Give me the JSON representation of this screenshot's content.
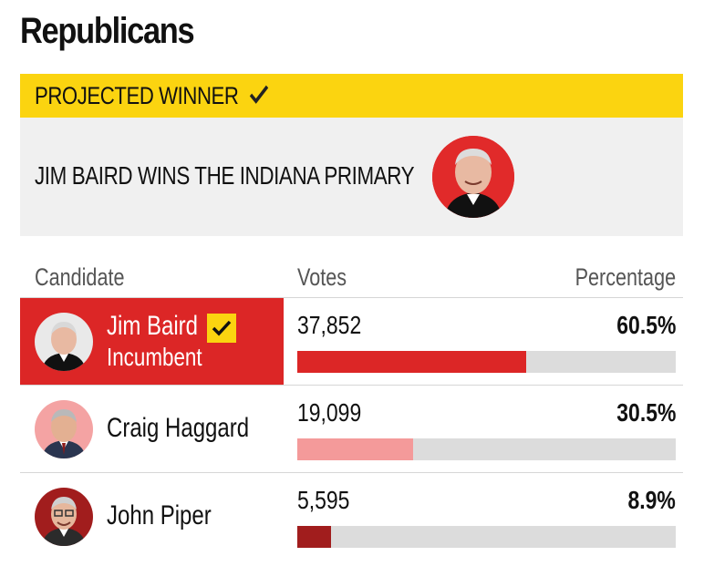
{
  "party": "Republicans",
  "winner_banner": {
    "label": "PROJECTED WINNER",
    "icon": "checkmark-icon",
    "headline": "JIM BAIRD WINS THE INDIANA PRIMARY"
  },
  "table": {
    "headers": {
      "candidate": "Candidate",
      "votes": "Votes",
      "percentage": "Percentage"
    },
    "rows": [
      {
        "name": "Jim Baird",
        "subtitle": "Incumbent",
        "votes": "37,852",
        "percentage": "60.5%",
        "share": 0.605,
        "winner": true,
        "bar_color": "#dc2626"
      },
      {
        "name": "Craig Haggard",
        "subtitle": "",
        "votes": "19,099",
        "percentage": "30.5%",
        "share": 0.305,
        "winner": false,
        "bar_color": "#f49a9a"
      },
      {
        "name": "John Piper",
        "subtitle": "",
        "votes": "5,595",
        "percentage": "8.9%",
        "share": 0.089,
        "winner": false,
        "bar_color": "#a11d1d"
      }
    ]
  },
  "colors": {
    "banner_yellow": "#fbd410",
    "winner_red": "#dc2626",
    "panel_gray": "#f0f0f0",
    "bar_track": "#dcdcdc"
  }
}
